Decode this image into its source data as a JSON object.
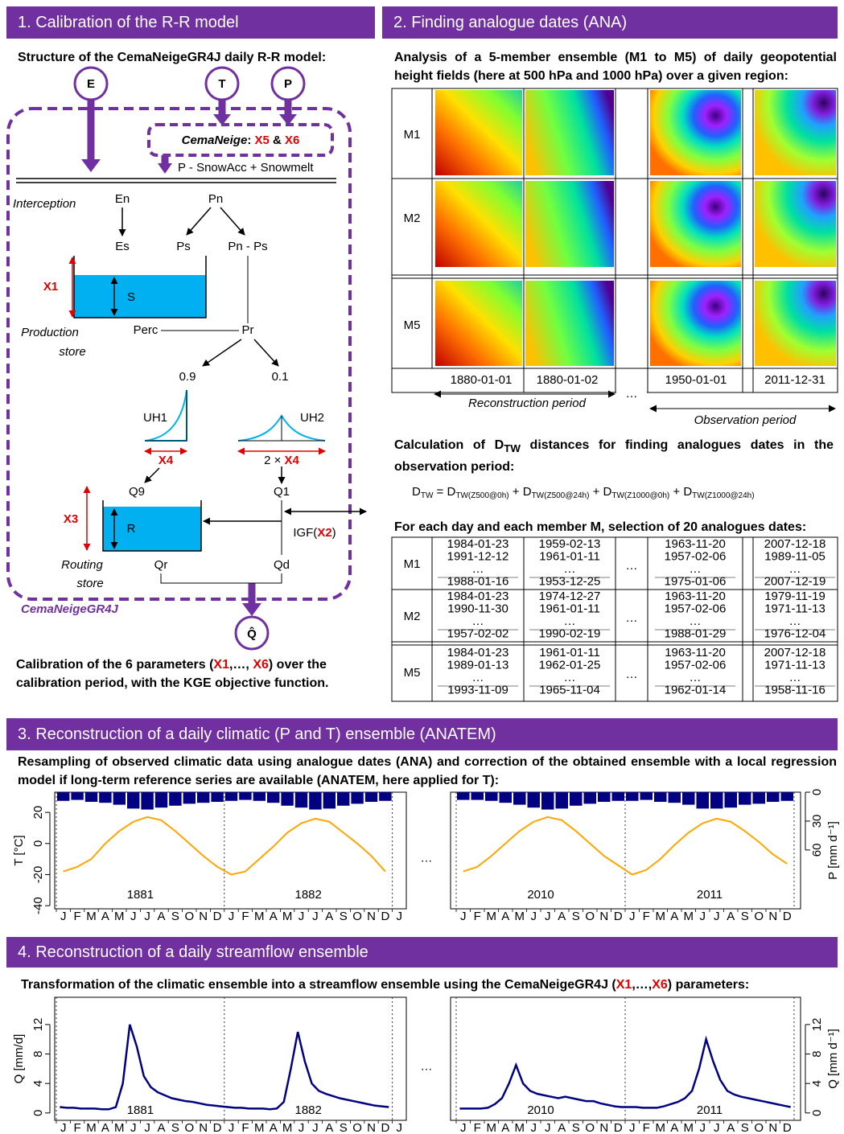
{
  "sections": [
    {
      "title": "1. Calibration of the R-R model"
    },
    {
      "title": "2. Finding analogue dates (ANA)"
    },
    {
      "title": "3. Reconstruction of a daily climatic (P and T) ensemble (ANATEM)"
    },
    {
      "title": "4. Reconstruction of a daily streamflow ensemble"
    }
  ],
  "model": {
    "subtitle": "Structure of the CemaNeigeGR4J daily R-R model:",
    "inputs": [
      "E",
      "T",
      "P"
    ],
    "snow_box": {
      "name": "CemaNeige",
      "sep": ": ",
      "p1": "X5",
      "and": " & ",
      "p2": "X6"
    },
    "snow_output": "P - SnowAcc + Snowmelt",
    "labels": {
      "interception": "Interception",
      "en": "En",
      "pn": "Pn",
      "es": "Es",
      "ps": "Ps",
      "pn_ps": "Pn - Ps",
      "x1": "X1",
      "s": "S",
      "production_store": [
        "Production",
        "store"
      ],
      "perc": "Perc",
      "pr": "Pr",
      "split_a": "0.9",
      "split_b": "0.1",
      "uh1": "UH1",
      "uh2": "UH2",
      "x4": "X4",
      "uh2_base": {
        "pre": "2 × ",
        "param": "X4"
      },
      "q9": "Q9",
      "q1": "Q1",
      "x3": "X3",
      "r": "R",
      "igf": {
        "pre": "IGF(",
        "param": "X2",
        "post": ")"
      },
      "routing_store": [
        "Routing",
        "store"
      ],
      "qr": "Qr",
      "qd": "Qd",
      "model_name": "CemaNeigeGR4J",
      "output": "Q̂"
    },
    "footer": {
      "pre": "Calibration of the 6 parameters (",
      "p1": "X1",
      "mid": ",…, ",
      "p2": "X6",
      "post": ") over the calibration period, with the KGE objective function."
    }
  },
  "analogues": {
    "intro": "Analysis of a 5-member ensemble (M1 to M5) of daily geopotential height fields (here at 500 hPa and 1000 hPa) over a given region:",
    "members": [
      "M1",
      "M2",
      "M5"
    ],
    "dates": [
      "1880-01-01",
      "1880-01-02",
      "…",
      "1950-01-01",
      "2011-12-31"
    ],
    "periods": [
      "Reconstruction period",
      "Observation period"
    ],
    "calc": {
      "pre": "Calculation of ",
      "base": "D",
      "sub": "TW",
      "post": " distances for finding analogues dates in the observation period:"
    },
    "formula": {
      "terms": [
        {
          "base": "D",
          "sub": "TW"
        },
        {
          "base": "D",
          "sub": "TW(Z500@0h)"
        },
        {
          "base": "D",
          "sub": "TW(Z500@24h)"
        },
        {
          "base": "D",
          "sub": "TW(Z1000@0h)"
        },
        {
          "base": "D",
          "sub": "TW(Z1000@24h)"
        }
      ],
      "ops": [
        " = ",
        " + ",
        " + ",
        " + "
      ]
    },
    "table_title": "For each day and each member M, selection of 20 analogues dates:",
    "gap": "…",
    "rows": [
      {
        "member": "M1",
        "cols": [
          [
            "1984-01-23",
            "1991-12-12",
            "…",
            "1988-01-16"
          ],
          [
            "1959-02-13",
            "1961-01-11",
            "…",
            "1953-12-25"
          ],
          [
            "1963-11-20",
            "1957-02-06",
            "…",
            "1975-01-06"
          ],
          [
            "2007-12-18",
            "1989-11-05",
            "…",
            "2007-12-19"
          ]
        ]
      },
      {
        "member": "M2",
        "cols": [
          [
            "1984-01-23",
            "1990-11-30",
            "…",
            "1957-02-02"
          ],
          [
            "1974-12-27",
            "1961-01-11",
            "…",
            "1990-02-19"
          ],
          [
            "1963-11-20",
            "1957-02-06",
            "…",
            "1988-01-29"
          ],
          [
            "1979-11-19",
            "1971-11-13",
            "…",
            "1976-12-04"
          ]
        ]
      },
      {
        "member": "M5",
        "cols": [
          [
            "1984-01-23",
            "1989-01-13",
            "…",
            "1993-11-09"
          ],
          [
            "1961-01-11",
            "1962-01-25",
            "…",
            "1965-11-04"
          ],
          [
            "1963-11-20",
            "1957-02-06",
            "…",
            "1962-01-14"
          ],
          [
            "2007-12-18",
            "1971-11-13",
            "…",
            "1958-11-16"
          ]
        ]
      }
    ]
  },
  "climate": {
    "description": "Resampling of observed climatic data using analogue dates (ANA) and correction of the obtained ensemble with a local regression model if long-term reference series are available (ANATEM, here applied for T):",
    "chart": {
      "type": "line",
      "months": [
        "J",
        "F",
        "M",
        "A",
        "M",
        "J",
        "J",
        "A",
        "S",
        "O",
        "N",
        "D"
      ],
      "ellipsis": "…",
      "y_label": "T [°C]",
      "y2_label": "P [mm d⁻¹]",
      "ylim": [
        -42,
        33
      ],
      "yticks": [
        -40,
        -20,
        0,
        20
      ],
      "y2lim": [
        0,
        121
      ],
      "y2ticks": [
        0,
        30,
        60
      ],
      "t_color": "#ffa500",
      "p_color": "#000080",
      "panels": [
        {
          "years": [
            "1881",
            "1882"
          ],
          "t_values": [
            -18,
            -15,
            -10,
            0,
            8,
            14,
            17,
            15,
            8,
            0,
            -8,
            -15,
            -20,
            -18,
            -10,
            -2,
            7,
            13,
            16,
            14,
            7,
            0,
            -8,
            -18
          ],
          "p_values": [
            9,
            8,
            10,
            11,
            13,
            17,
            18,
            16,
            14,
            12,
            11,
            10,
            9,
            8,
            9,
            11,
            14,
            16,
            18,
            17,
            14,
            12,
            10,
            9
          ]
        },
        {
          "years": [
            "2010",
            "2011"
          ],
          "t_values": [
            -18,
            -15,
            -8,
            0,
            8,
            14,
            17,
            15,
            8,
            0,
            -8,
            -14,
            -20,
            -17,
            -10,
            -1,
            7,
            13,
            16,
            14,
            8,
            1,
            -7,
            -13
          ],
          "p_values": [
            8,
            8,
            9,
            11,
            13,
            16,
            18,
            17,
            14,
            12,
            10,
            9,
            9,
            8,
            10,
            11,
            13,
            17,
            17,
            16,
            13,
            12,
            10,
            9
          ]
        }
      ]
    }
  },
  "streamflow": {
    "description": {
      "pre": "Transformation of the climatic ensemble into a streamflow ensemble using the CemaNeigeGR4J (",
      "p1": "X1",
      "mid": ",…,",
      "p2": "X6",
      "post": ") parameters:"
    },
    "chart": {
      "type": "line",
      "months": [
        "J",
        "F",
        "M",
        "A",
        "M",
        "J",
        "J",
        "A",
        "S",
        "O",
        "N",
        "D"
      ],
      "ellipsis": "…",
      "y_label": "Q [mm/d]",
      "y2_label": "Q [mm d⁻¹]",
      "ylim": [
        -1,
        15.7
      ],
      "yticks": [
        0,
        4,
        8,
        12
      ],
      "color": "#000080",
      "panels": [
        {
          "years": [
            "1881",
            "1882"
          ],
          "values": [
            0.8,
            0.7,
            0.7,
            0.6,
            0.6,
            0.6,
            0.5,
            0.5,
            0.8,
            4,
            12,
            9,
            5,
            3.5,
            2.8,
            2.4,
            2,
            1.8,
            1.6,
            1.5,
            1.3,
            1.1,
            1,
            0.9,
            0.8,
            0.7,
            0.7,
            0.6,
            0.6,
            0.6,
            0.5,
            0.6,
            1.5,
            6,
            11,
            7,
            4,
            3,
            2.6,
            2.3,
            2,
            1.8,
            1.6,
            1.4,
            1.2,
            1,
            0.9,
            0.8
          ]
        },
        {
          "years": [
            "2010",
            "2011"
          ],
          "values": [
            0.6,
            0.6,
            0.6,
            0.6,
            0.7,
            1.2,
            2,
            4,
            6.5,
            4,
            3,
            2.6,
            2.4,
            2.2,
            2,
            2.2,
            2,
            1.8,
            1.6,
            1.6,
            1.3,
            1.1,
            0.9,
            0.8,
            0.8,
            0.8,
            0.7,
            0.7,
            0.7,
            0.9,
            1.2,
            1.5,
            2,
            3,
            6,
            10,
            7,
            4.5,
            3,
            2.5,
            2.2,
            2,
            1.8,
            1.6,
            1.4,
            1.2,
            1,
            0.8
          ]
        }
      ]
    }
  }
}
